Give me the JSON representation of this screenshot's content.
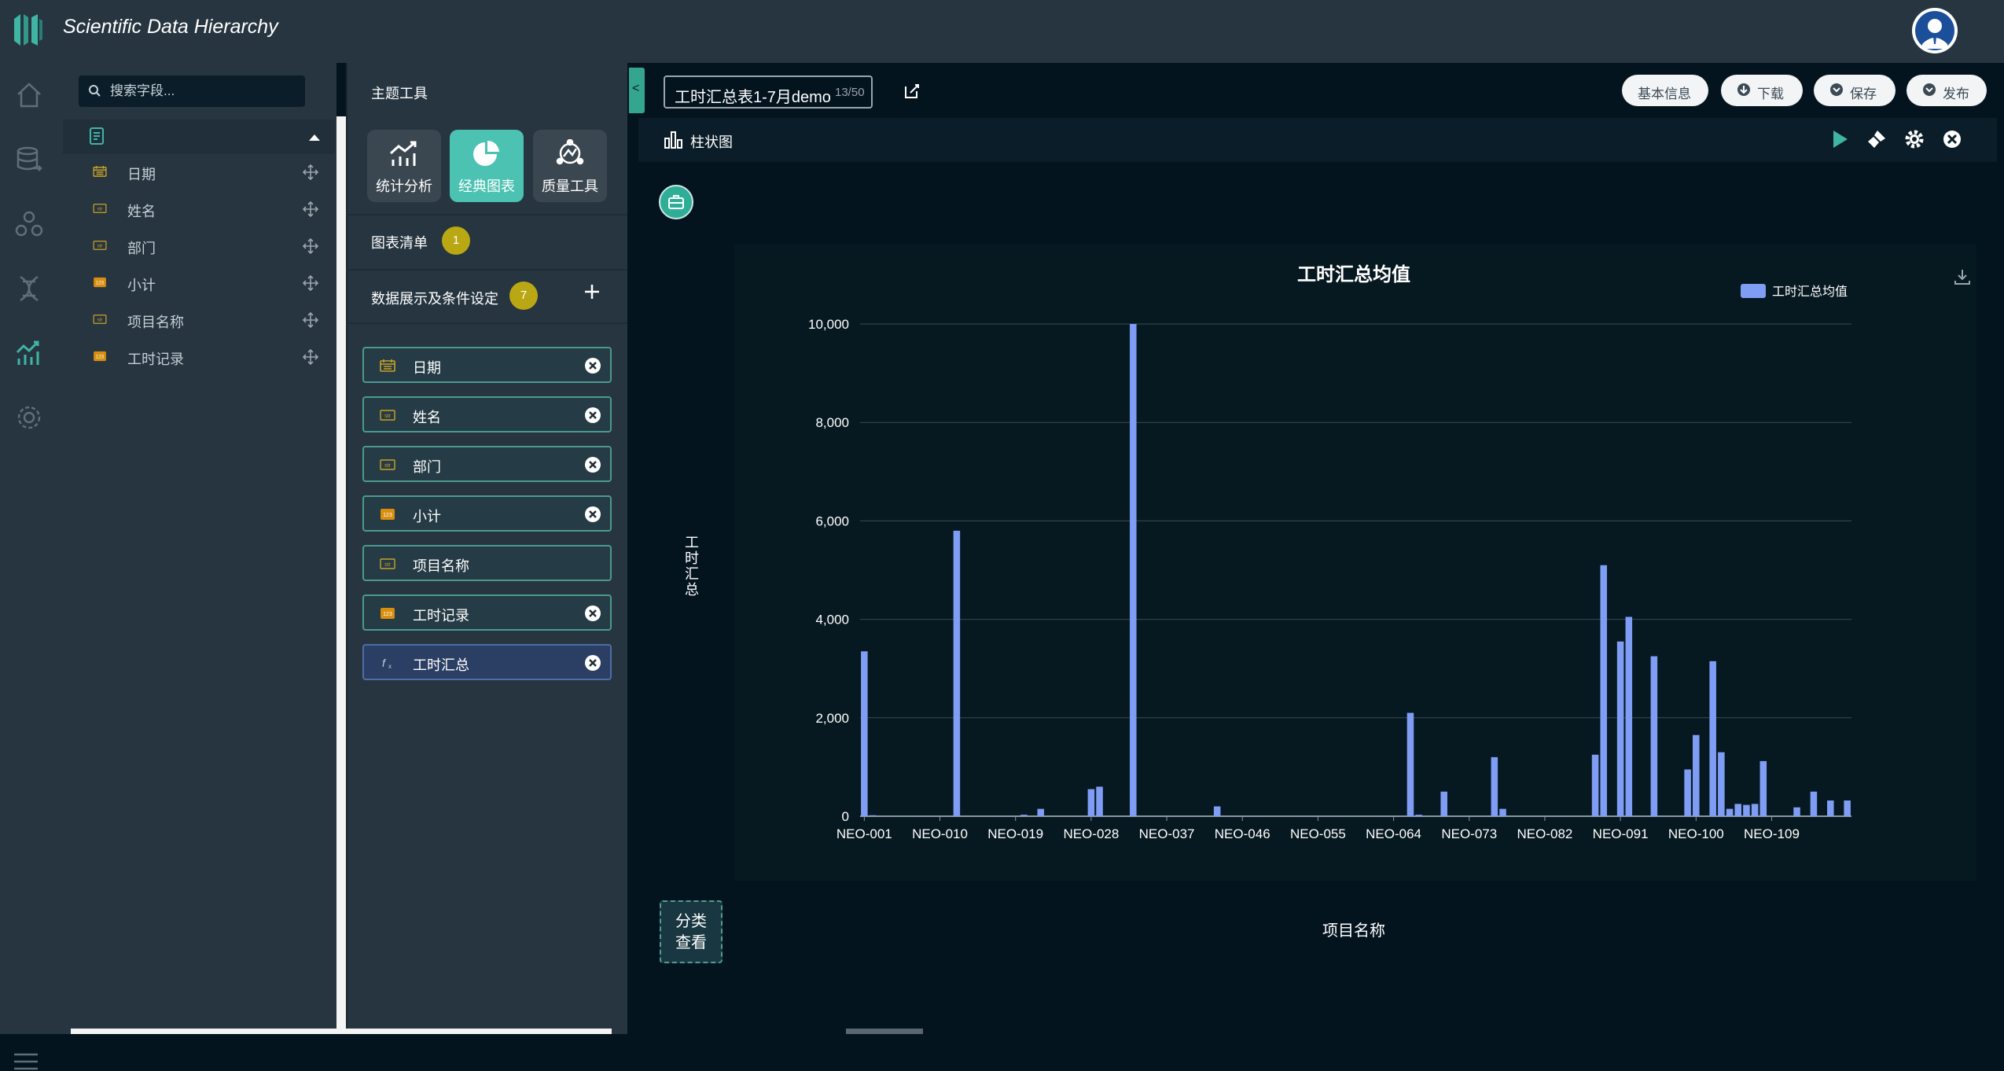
{
  "app": {
    "title": "Scientific Data Hierarchy"
  },
  "rail": [
    "home-icon",
    "database-icon",
    "network-icon",
    "dna-icon",
    "analytics-icon",
    "settings-icon"
  ],
  "field_panel": {
    "search_placeholder": "搜索字段...",
    "fields": [
      {
        "label": "日期",
        "type": "date"
      },
      {
        "label": "姓名",
        "type": "str"
      },
      {
        "label": "部门",
        "type": "str"
      },
      {
        "label": "小计",
        "type": "num"
      },
      {
        "label": "项目名称",
        "type": "str"
      },
      {
        "label": "工时记录",
        "type": "num"
      }
    ]
  },
  "tools": {
    "title": "主题工具",
    "buttons": [
      {
        "label": "统计分析",
        "active": false
      },
      {
        "label": "经典图表",
        "active": true
      },
      {
        "label": "质量工具",
        "active": false
      }
    ],
    "chart_list_label": "图表清单",
    "chart_list_count": "1",
    "conditions_label": "数据展示及条件设定",
    "conditions_count": "7",
    "conditions": [
      {
        "label": "日期",
        "type": "date",
        "removable": true
      },
      {
        "label": "姓名",
        "type": "str",
        "removable": true
      },
      {
        "label": "部门",
        "type": "str",
        "removable": true
      },
      {
        "label": "小计",
        "type": "num",
        "removable": true
      },
      {
        "label": "项目名称",
        "type": "str",
        "removable": false
      },
      {
        "label": "工时记录",
        "type": "num",
        "removable": true
      },
      {
        "label": "工时汇总",
        "type": "fx",
        "removable": true
      }
    ]
  },
  "header": {
    "doc_title": "工时汇总表1-7月demo",
    "char_count": "13/50",
    "actions": [
      "基本信息",
      "下载",
      "保存",
      "发布"
    ]
  },
  "chart_toolbar": {
    "chart_type_label": "柱状图"
  },
  "category_button": "分类查看",
  "colors": {
    "accent": "#4cc2b2",
    "bar": "#7f9df4",
    "badge": "#b9a713"
  },
  "chart_data": {
    "type": "bar",
    "title": "工时汇总均值",
    "xlabel": "项目名称",
    "ylabel": "工时汇总",
    "ylim": [
      0,
      10000
    ],
    "yticks": [
      "0",
      "2,000",
      "4,000",
      "6,000",
      "8,000",
      "10,000"
    ],
    "grid": true,
    "legend_position": "top-right",
    "series": [
      {
        "name": "工时汇总均值",
        "values": [
          3350,
          20,
          0,
          0,
          0,
          0,
          0,
          0,
          0,
          0,
          0,
          5800,
          0,
          0,
          0,
          0,
          0,
          0,
          0,
          30,
          0,
          150,
          0,
          0,
          0,
          0,
          0,
          550,
          600,
          0,
          0,
          0,
          10000,
          0,
          0,
          0,
          0,
          0,
          0,
          0,
          0,
          0,
          200,
          0,
          0,
          0,
          0,
          0,
          0,
          0,
          0,
          0,
          0,
          0,
          0,
          0,
          0,
          0,
          0,
          0,
          0,
          0,
          0,
          0,
          0,
          2100,
          30,
          0,
          0,
          500,
          0,
          0,
          0,
          0,
          0,
          1200,
          150,
          0,
          0,
          0,
          0,
          0,
          0,
          0,
          0,
          0,
          0,
          1250,
          5100,
          0,
          3550,
          4050,
          0,
          0,
          3250,
          0,
          0,
          0,
          950,
          1650,
          0,
          3150,
          1300,
          150,
          250,
          230,
          250,
          1120,
          0,
          0,
          0,
          180,
          0,
          500,
          0,
          320,
          0,
          320
        ]
      }
    ],
    "x_tick_labels": [
      "NEO-001",
      "NEO-010",
      "NEO-019",
      "NEO-028",
      "NEO-037",
      "NEO-046",
      "NEO-055",
      "NEO-064",
      "NEO-073",
      "NEO-082",
      "NEO-091",
      "NEO-100",
      "NEO-109"
    ]
  }
}
